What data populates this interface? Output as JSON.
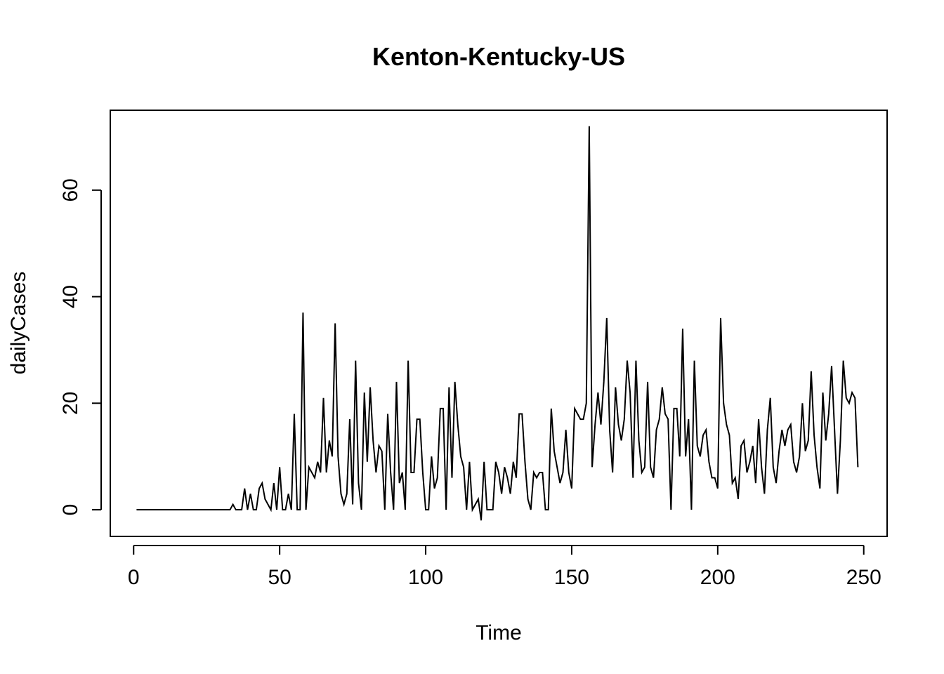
{
  "chart_data": {
    "type": "line",
    "title": "Kenton-Kentucky-US",
    "xlabel": "Time",
    "ylabel": "dailyCases",
    "xlim": [
      -8,
      258
    ],
    "ylim": [
      -5,
      75
    ],
    "xticks": [
      0,
      50,
      100,
      150,
      200,
      250
    ],
    "yticks": [
      0,
      20,
      40,
      60
    ],
    "xtick_labels": [
      "0",
      "50",
      "100",
      "150",
      "200",
      "250"
    ],
    "ytick_labels": [
      "0",
      "20",
      "40",
      "60"
    ],
    "grid": false,
    "legend": "none",
    "line_color": "#000000",
    "series": [
      {
        "x_start": 1,
        "x_step": 1,
        "values": [
          0,
          0,
          0,
          0,
          0,
          0,
          0,
          0,
          0,
          0,
          0,
          0,
          0,
          0,
          0,
          0,
          0,
          0,
          0,
          0,
          0,
          0,
          0,
          0,
          0,
          0,
          0,
          0,
          0,
          0,
          0,
          0,
          0,
          1,
          0,
          0,
          0,
          4,
          0,
          3,
          0,
          0,
          4,
          5,
          2,
          1,
          0,
          5,
          0,
          8,
          0,
          0,
          3,
          0,
          18,
          0,
          0,
          37,
          0,
          8,
          7,
          6,
          9,
          7,
          21,
          7,
          13,
          10,
          35,
          10,
          3,
          1,
          3,
          17,
          1,
          28,
          5,
          0,
          22,
          9,
          23,
          13,
          7,
          12,
          11,
          0,
          18,
          7,
          0,
          24,
          5,
          7,
          0,
          28,
          7,
          7,
          17,
          17,
          7,
          0,
          0,
          10,
          4,
          6,
          19,
          19,
          0,
          23,
          6,
          24,
          16,
          10,
          8,
          0,
          9,
          0,
          1,
          2,
          -2,
          9,
          0,
          0,
          0,
          9,
          7,
          3,
          8,
          6,
          3,
          9,
          6,
          18,
          18,
          9,
          2,
          0,
          7,
          6,
          7,
          7,
          0,
          0,
          19,
          11,
          8,
          5,
          7,
          15,
          7,
          4,
          19,
          18,
          17,
          17,
          20,
          72,
          8,
          16,
          22,
          16,
          24,
          36,
          15,
          7,
          23,
          16,
          13,
          17,
          28,
          22,
          6,
          28,
          13,
          7,
          8,
          24,
          8,
          6,
          15,
          17,
          23,
          18,
          17,
          0,
          19,
          19,
          10,
          34,
          10,
          17,
          0,
          28,
          12,
          10,
          14,
          15,
          9,
          6,
          6,
          4,
          36,
          20,
          16,
          14,
          5,
          6,
          2,
          12,
          13,
          7,
          9,
          12,
          5,
          17,
          8,
          3,
          15,
          21,
          8,
          5,
          11,
          15,
          12,
          15,
          16,
          9,
          7,
          10,
          20,
          11,
          13,
          26,
          14,
          8,
          4,
          22,
          13,
          18,
          27,
          15,
          3,
          13,
          28,
          21,
          20,
          22,
          21,
          8
        ]
      }
    ]
  }
}
